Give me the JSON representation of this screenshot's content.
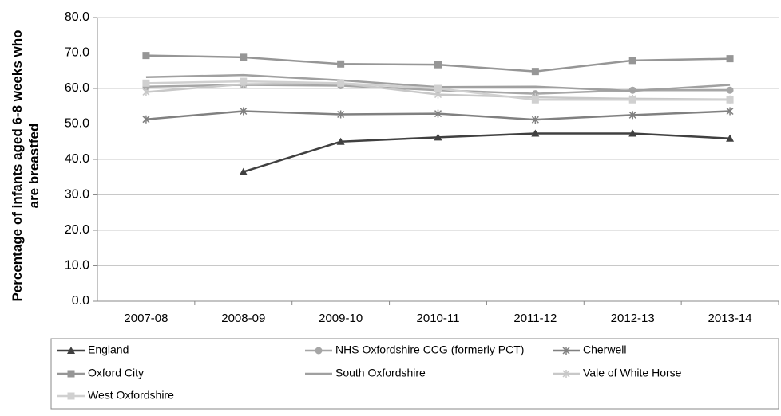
{
  "chart_data": {
    "type": "line",
    "ylabel": "Percentage of infants aged 6-8 weeks who are breastfed",
    "categories": [
      "2007-08",
      "2008-09",
      "2009-10",
      "2010-11",
      "2011-12",
      "2012-13",
      "2013-14"
    ],
    "ylim": [
      0,
      80
    ],
    "yticks": [
      {
        "value": 0,
        "label": "0.0"
      },
      {
        "value": 10,
        "label": "10.0"
      },
      {
        "value": 20,
        "label": "20.0"
      },
      {
        "value": 30,
        "label": "30.0"
      },
      {
        "value": 40,
        "label": "40.0"
      },
      {
        "value": 50,
        "label": "50.0"
      },
      {
        "value": 60,
        "label": "60.0"
      },
      {
        "value": 70,
        "label": "70.0"
      },
      {
        "value": 80,
        "label": "80.0"
      }
    ],
    "grid": true,
    "legend": "bottom",
    "series": [
      {
        "name": "England",
        "color": "#404040",
        "marker": "triangle",
        "values": [
          null,
          36.5,
          45.0,
          46.2,
          47.3,
          47.3,
          45.9
        ]
      },
      {
        "name": "NHS Oxfordshire CCG (formerly PCT)",
        "color": "#a6a6a6",
        "marker": "circle",
        "values": [
          60.5,
          61.0,
          60.8,
          59.5,
          58.5,
          59.5,
          59.5
        ]
      },
      {
        "name": "Cherwell",
        "color": "#808080",
        "marker": "star",
        "values": [
          51.3,
          53.6,
          52.7,
          52.9,
          51.2,
          52.5,
          53.6
        ]
      },
      {
        "name": "Oxford City",
        "color": "#969696",
        "marker": "square",
        "values": [
          69.3,
          68.8,
          66.9,
          66.7,
          64.8,
          67.9,
          68.4
        ]
      },
      {
        "name": "South Oxfordshire",
        "color": "#a0a0a0",
        "marker": "none",
        "values": [
          63.2,
          63.8,
          62.3,
          60.4,
          60.5,
          59.3,
          61.0
        ]
      },
      {
        "name": "Vale of White Horse",
        "color": "#c8c8c8",
        "marker": "star",
        "values": [
          59.0,
          61.2,
          61.5,
          58.3,
          57.5,
          57.1,
          56.9
        ]
      },
      {
        "name": "West Oxfordshire",
        "color": "#d0d0d0",
        "marker": "square",
        "values": [
          61.5,
          62.0,
          61.5,
          60.0,
          56.8,
          56.8,
          56.8
        ]
      }
    ]
  }
}
